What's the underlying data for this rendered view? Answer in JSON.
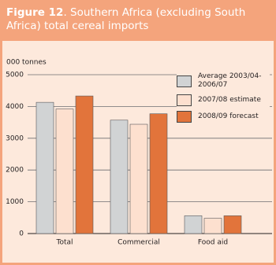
{
  "header": {
    "label": "Figure 12",
    "title": ". Southern Africa (excluding South Africa) total cereal imports"
  },
  "chart_data": {
    "type": "bar",
    "y_label": "000 tonnes",
    "categories": [
      "Total",
      "Commercial",
      "Food aid"
    ],
    "series": [
      {
        "name": "Average 2003/04-2006/07",
        "color": "#d1d3d4",
        "values": [
          4130,
          3570,
          560
        ]
      },
      {
        "name": "2007/08 estimate",
        "color": "#fde0cf",
        "values": [
          3920,
          3440,
          480
        ]
      },
      {
        "name": "2008/09 forecast",
        "color": "#e2743b",
        "values": [
          4330,
          3770,
          560
        ]
      }
    ],
    "ylim": [
      0,
      5000
    ],
    "yticks": [
      0,
      1000,
      2000,
      3000,
      4000,
      5000
    ],
    "grid": true,
    "legend": "top-right"
  }
}
